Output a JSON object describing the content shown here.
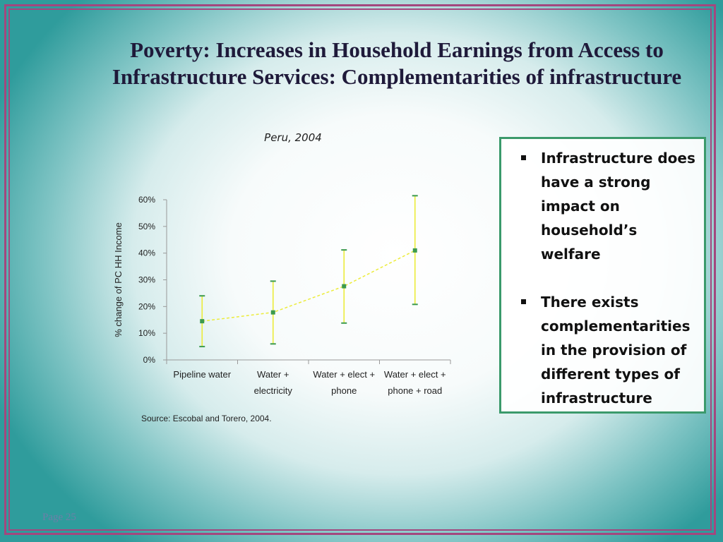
{
  "slide": {
    "title_line1": "Poverty: Increases in Household Earnings from Access to",
    "title_line2": "Infrastructure Services: Complementarities of infrastructure",
    "page_label": "Page 25"
  },
  "textbox": {
    "bullets": [
      "Infrastructure does have a strong impact on household’s welfare",
      "There exists complementarities in the provision of different types of infrastructure"
    ]
  },
  "chart_data": {
    "type": "line",
    "title": "Peru, 2004",
    "ylabel": "% change of PC HH Income",
    "xlabel": "",
    "source": "Source: Escobal and Torero, 2004.",
    "categories": [
      [
        "Pipeline water"
      ],
      [
        "Water +",
        "electricity"
      ],
      [
        "Water + elect +",
        "phone"
      ],
      [
        "Water + elect +",
        "phone + road"
      ]
    ],
    "series": [
      {
        "values": [
          0.145,
          0.178,
          0.276,
          0.41
        ],
        "lower": [
          0.05,
          0.06,
          0.138,
          0.208
        ],
        "upper": [
          0.24,
          0.295,
          0.412,
          0.615
        ]
      }
    ],
    "ylim": [
      0,
      0.6
    ],
    "yticks": [
      "0%",
      "10%",
      "20%",
      "30%",
      "40%",
      "50%",
      "60%"
    ],
    "grid": false,
    "colors": {
      "errorbar": "#ecec3a",
      "marker": "#3c9a4e",
      "line": "#ecec3a"
    }
  }
}
